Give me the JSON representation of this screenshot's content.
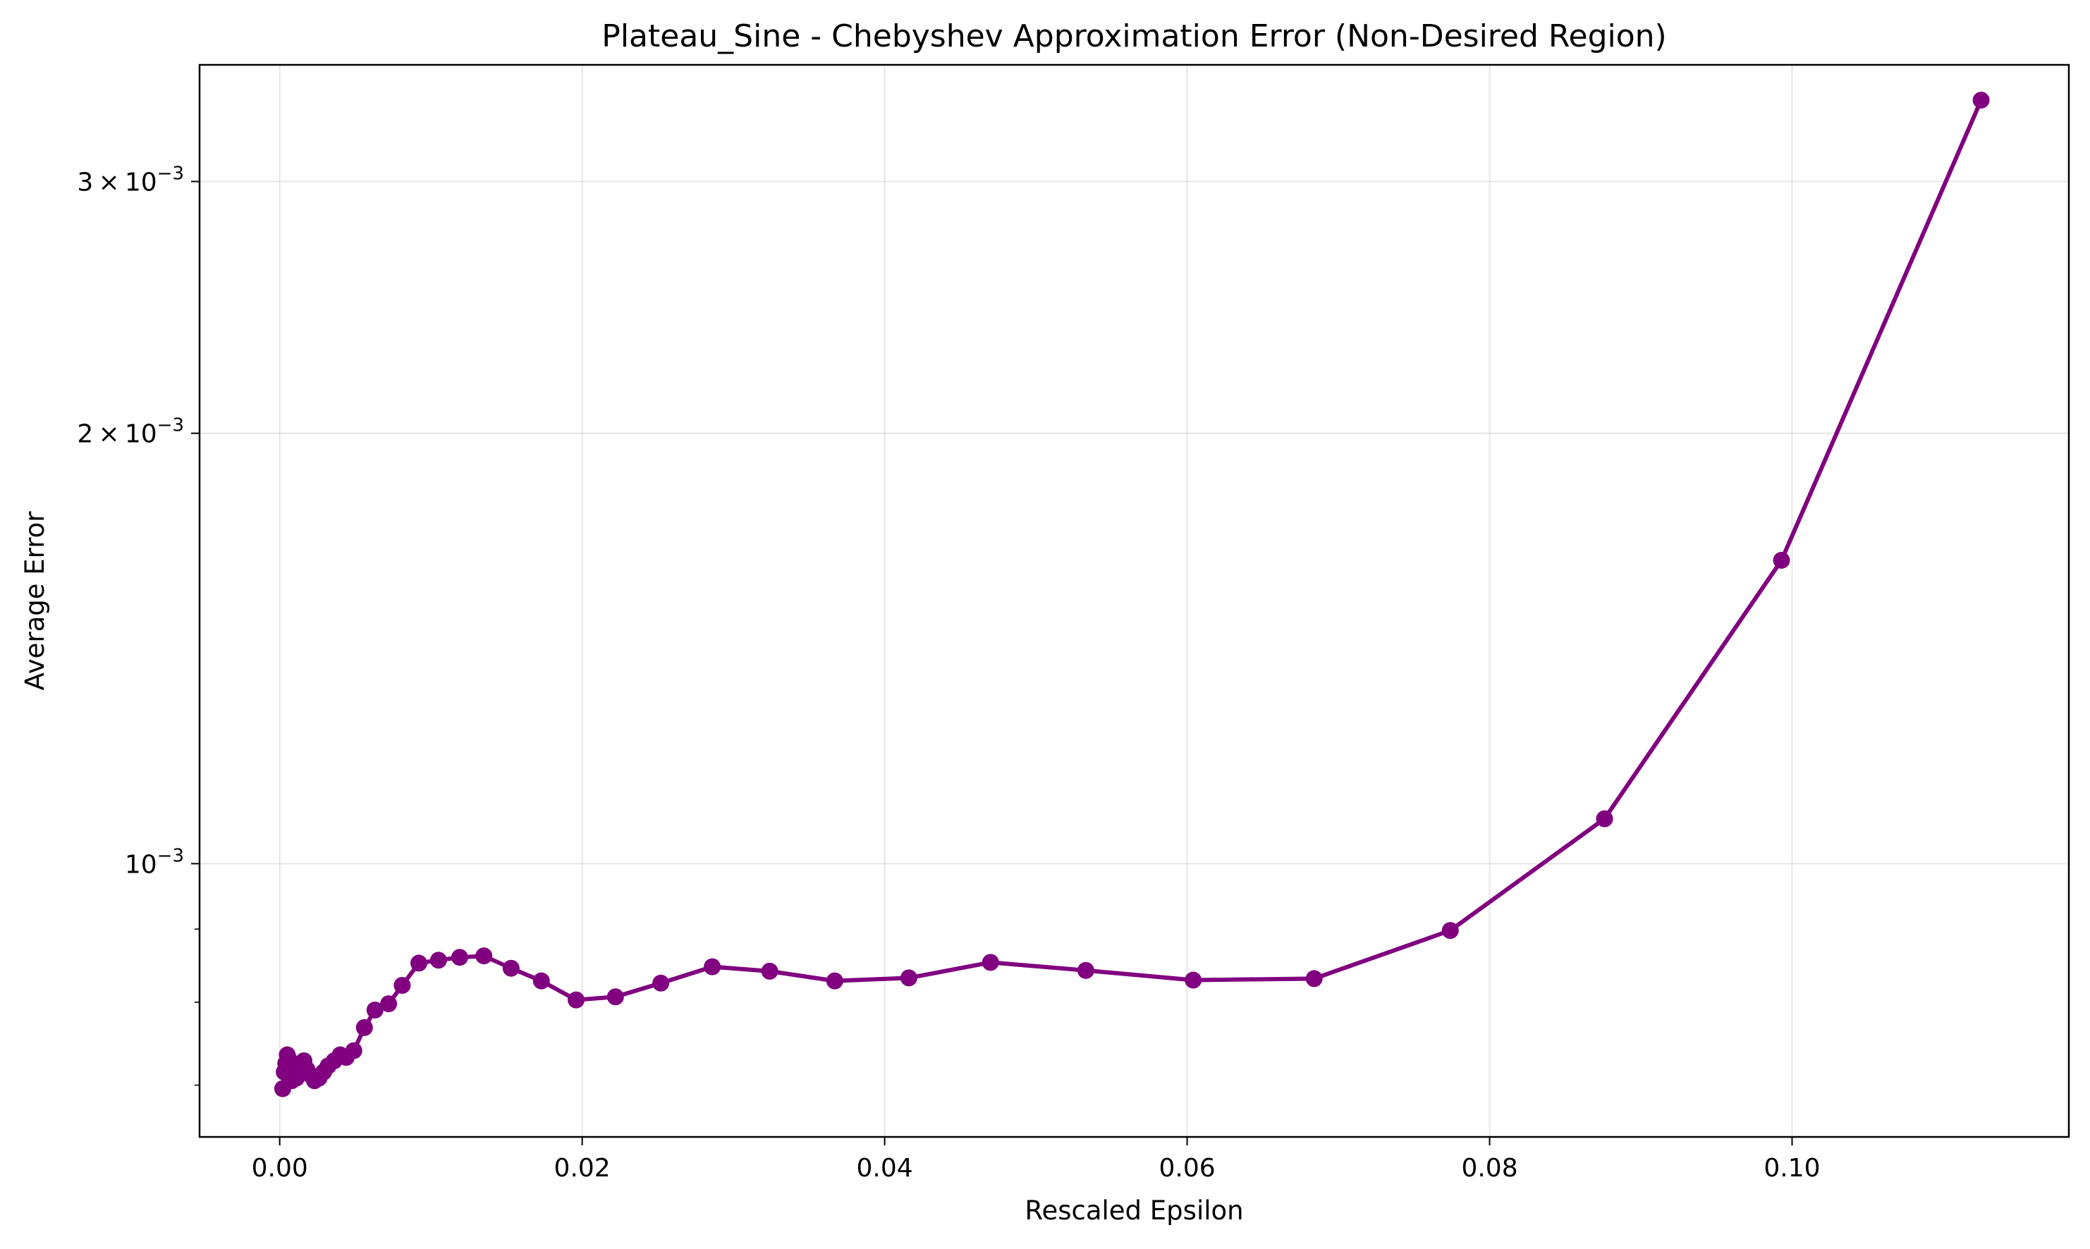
{
  "chart_data": {
    "type": "line",
    "title": "Plateau_Sine - Chebyshev Approximation Error (Non-Desired Region)",
    "xlabel": "Rescaled Epsilon",
    "ylabel": "Average Error",
    "y_scale": "log",
    "xlim": [
      -0.0053,
      0.1183
    ],
    "ylim": [
      0.000644,
      0.00362
    ],
    "x_ticks": [
      0.0,
      0.02,
      0.04,
      0.06,
      0.08,
      0.1
    ],
    "x_tick_labels": [
      "0.00",
      "0.02",
      "0.04",
      "0.06",
      "0.08",
      "0.10"
    ],
    "y_ticks": [
      0.001,
      0.002,
      0.003
    ],
    "y_tick_labels": [
      {
        "mantissa": "",
        "exp": "−3"
      },
      {
        "mantissa": "2",
        "exp": "−3"
      },
      {
        "mantissa": "3",
        "exp": "−3"
      }
    ],
    "y_minor_ticks": [
      0.0007,
      0.0008,
      0.0009
    ],
    "grid": true,
    "legend": "none",
    "color": "#800080",
    "series": [
      {
        "x": [
          0.0002,
          0.0003,
          0.0004,
          0.0005,
          0.0006,
          0.0007,
          0.0008,
          0.0009,
          0.001,
          0.0011,
          0.0012,
          0.0014,
          0.0016,
          0.0018,
          0.002,
          0.0023,
          0.0026,
          0.0029,
          0.0032,
          0.0036,
          0.004,
          0.0044,
          0.0049,
          0.0056,
          0.0063,
          0.0072,
          0.0081,
          0.0092,
          0.0105,
          0.0119,
          0.0135,
          0.0153,
          0.0173,
          0.0196,
          0.0222,
          0.0252,
          0.0286,
          0.0324,
          0.0367,
          0.0416,
          0.047,
          0.0533,
          0.0604,
          0.0684,
          0.0774,
          0.0876,
          0.0993,
          0.1125
        ],
        "y": [
          0.000696,
          0.000715,
          0.000725,
          0.000735,
          0.00073,
          0.000718,
          0.000705,
          0.000712,
          0.000722,
          0.000708,
          0.000716,
          0.000725,
          0.000728,
          0.000718,
          0.000712,
          0.000705,
          0.000708,
          0.000715,
          0.000722,
          0.000728,
          0.000735,
          0.000732,
          0.00074,
          0.000768,
          0.00079,
          0.000798,
          0.000822,
          0.000852,
          0.000856,
          0.00086,
          0.000862,
          0.000845,
          0.000828,
          0.000803,
          0.000807,
          0.000825,
          0.000847,
          0.000841,
          0.000828,
          0.000832,
          0.000853,
          0.000842,
          0.000829,
          0.000831,
          0.000898,
          0.001075,
          0.00163,
          0.00342
        ]
      }
    ]
  }
}
